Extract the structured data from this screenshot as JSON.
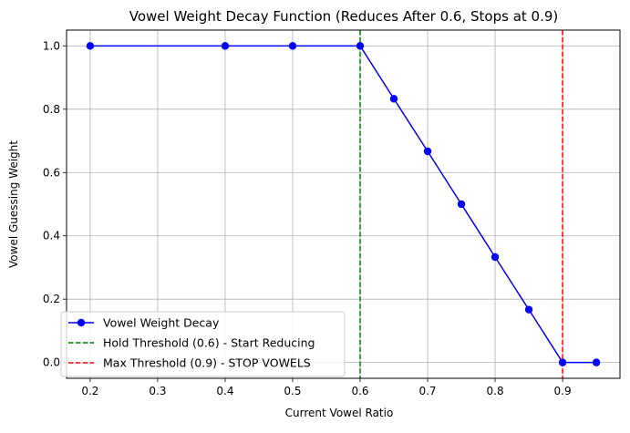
{
  "chart_data": {
    "type": "line",
    "title": "Vowel Weight Decay Function (Reduces After 0.6, Stops at 0.9)",
    "xlabel": "Current Vowel Ratio",
    "ylabel": "Vowel Guessing Weight",
    "xlim": [
      0.165,
      0.985
    ],
    "ylim": [
      -0.05,
      1.05
    ],
    "xticks": [
      0.2,
      0.3,
      0.4,
      0.5,
      0.6,
      0.7,
      0.8,
      0.9
    ],
    "xtick_labels": [
      "0.2",
      "0.3",
      "0.4",
      "0.5",
      "0.6",
      "0.7",
      "0.8",
      "0.9"
    ],
    "yticks": [
      0.0,
      0.2,
      0.4,
      0.6,
      0.8,
      1.0
    ],
    "ytick_labels": [
      "0.0",
      "0.2",
      "0.4",
      "0.6",
      "0.8",
      "1.0"
    ],
    "grid": true,
    "legend_position": "lower-left",
    "series": [
      {
        "name": "Vowel Weight Decay",
        "color": "#0000ff",
        "marker": "circle",
        "x": [
          0.2,
          0.4,
          0.5,
          0.6,
          0.65,
          0.7,
          0.75,
          0.8,
          0.85,
          0.9,
          0.95
        ],
        "y": [
          1.0,
          1.0,
          1.0,
          1.0,
          0.833,
          0.667,
          0.5,
          0.333,
          0.167,
          0.0,
          0.0
        ]
      }
    ],
    "vlines": [
      {
        "name": "Hold Threshold (0.6) - Start Reducing",
        "x": 0.6,
        "color": "#008000",
        "style": "dashed"
      },
      {
        "name": "Max Threshold (0.9) - STOP VOWELS",
        "x": 0.9,
        "color": "#ff0000",
        "style": "dashed"
      }
    ]
  }
}
